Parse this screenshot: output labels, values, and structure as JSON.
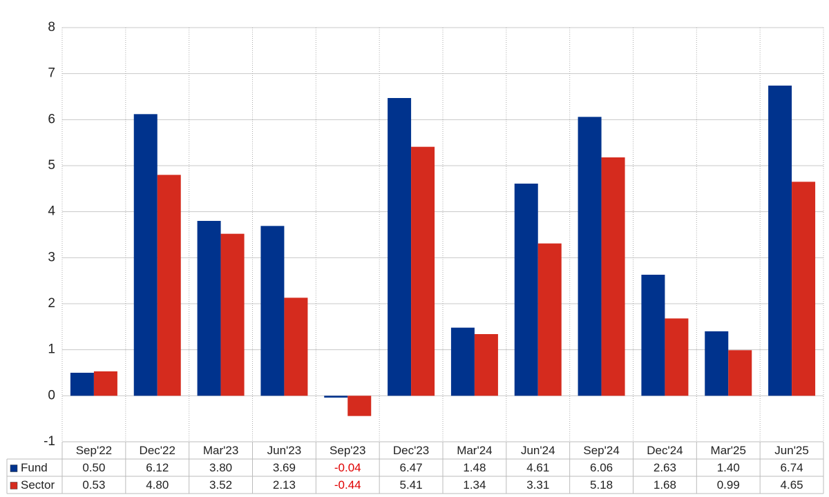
{
  "chart_data": {
    "type": "bar",
    "categories": [
      "Sep'22",
      "Dec'22",
      "Mar'23",
      "Jun'23",
      "Sep'23",
      "Dec'23",
      "Mar'24",
      "Jun'24",
      "Sep'24",
      "Dec'24",
      "Mar'25",
      "Jun'25"
    ],
    "series": [
      {
        "name": "Fund",
        "color": "#00338d",
        "values": [
          0.5,
          6.12,
          3.8,
          3.69,
          -0.04,
          6.47,
          1.48,
          4.61,
          6.06,
          2.63,
          1.4,
          6.74
        ],
        "value_labels": [
          "0.50",
          "6.12",
          "3.80",
          "3.69",
          "-0.04",
          "6.47",
          "1.48",
          "4.61",
          "6.06",
          "2.63",
          "1.40",
          "6.74"
        ]
      },
      {
        "name": "Sector",
        "color": "#d52b1e",
        "values": [
          0.53,
          4.8,
          3.52,
          2.13,
          -0.44,
          5.41,
          1.34,
          3.31,
          5.18,
          1.68,
          0.99,
          4.65
        ],
        "value_labels": [
          "0.53",
          "4.80",
          "3.52",
          "2.13",
          "-0.44",
          "5.41",
          "1.34",
          "3.31",
          "5.18",
          "1.68",
          "0.99",
          "4.65"
        ]
      }
    ],
    "ylim": [
      -1,
      8
    ],
    "yticks": [
      -1,
      0,
      1,
      2,
      3,
      4,
      5,
      6,
      7,
      8
    ],
    "grid": true
  }
}
